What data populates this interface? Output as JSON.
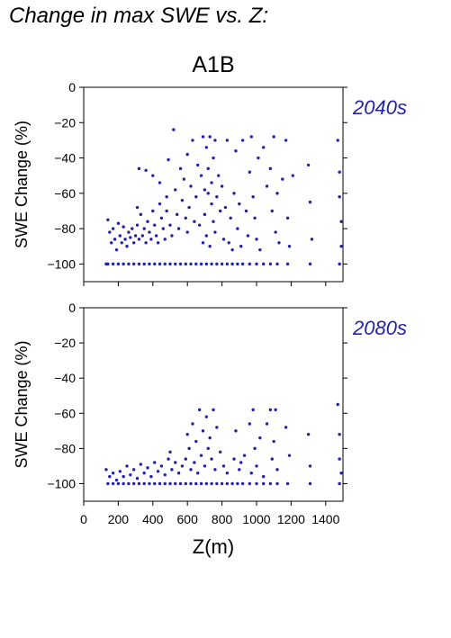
{
  "title": "Change in max SWE vs. Z:",
  "chart_data": {
    "type": "scatter",
    "scenario": "A1B",
    "color": "#2222aa",
    "xlabel": "Z(m)",
    "x_ticks": [
      0,
      200,
      400,
      600,
      800,
      1000,
      1200,
      1400
    ],
    "xlim": [
      0,
      1500
    ],
    "panels": [
      {
        "period": "2040s",
        "ylabel": "SWE Change (%)",
        "ylim": [
          -110,
          0
        ],
        "y_ticks": [
          0,
          -20,
          -40,
          -60,
          -80,
          -100
        ],
        "points": [
          [
            130,
            -100
          ],
          [
            140,
            -75
          ],
          [
            150,
            -82
          ],
          [
            160,
            -88
          ],
          [
            170,
            -80
          ],
          [
            180,
            -86
          ],
          [
            190,
            -92
          ],
          [
            200,
            -77
          ],
          [
            210,
            -84
          ],
          [
            220,
            -88
          ],
          [
            230,
            -79
          ],
          [
            240,
            -86
          ],
          [
            250,
            -90
          ],
          [
            260,
            -82
          ],
          [
            270,
            -85
          ],
          [
            280,
            -80
          ],
          [
            290,
            -88
          ],
          [
            300,
            -84
          ],
          [
            310,
            -68
          ],
          [
            310,
            -78
          ],
          [
            320,
            -86
          ],
          [
            320,
            -46
          ],
          [
            330,
            -72
          ],
          [
            340,
            -84
          ],
          [
            350,
            -80
          ],
          [
            360,
            -88
          ],
          [
            360,
            -47
          ],
          [
            370,
            -76
          ],
          [
            380,
            -82
          ],
          [
            390,
            -86
          ],
          [
            400,
            -70
          ],
          [
            400,
            -50
          ],
          [
            410,
            -78
          ],
          [
            420,
            -84
          ],
          [
            430,
            -88
          ],
          [
            440,
            -66
          ],
          [
            440,
            -54
          ],
          [
            450,
            -74
          ],
          [
            460,
            -80
          ],
          [
            470,
            -86
          ],
          [
            480,
            -70
          ],
          [
            480,
            -62
          ],
          [
            490,
            -41
          ],
          [
            500,
            -78
          ],
          [
            510,
            -84
          ],
          [
            520,
            -24
          ],
          [
            530,
            -58
          ],
          [
            540,
            -72
          ],
          [
            550,
            -80
          ],
          [
            560,
            -46
          ],
          [
            570,
            -64
          ],
          [
            580,
            -52
          ],
          [
            590,
            -74
          ],
          [
            600,
            -82
          ],
          [
            600,
            -38
          ],
          [
            610,
            -68
          ],
          [
            620,
            -56
          ],
          [
            630,
            -30
          ],
          [
            640,
            -76
          ],
          [
            650,
            -62
          ],
          [
            660,
            -44
          ],
          [
            670,
            -78
          ],
          [
            680,
            -50
          ],
          [
            690,
            -28
          ],
          [
            690,
            -88
          ],
          [
            700,
            -72
          ],
          [
            700,
            -58
          ],
          [
            710,
            -34
          ],
          [
            710,
            -84
          ],
          [
            720,
            -60
          ],
          [
            720,
            -46
          ],
          [
            730,
            -28
          ],
          [
            730,
            -90
          ],
          [
            740,
            -66
          ],
          [
            740,
            -54
          ],
          [
            750,
            -76
          ],
          [
            750,
            -40
          ],
          [
            760,
            -30
          ],
          [
            760,
            -82
          ],
          [
            770,
            -62
          ],
          [
            780,
            -50
          ],
          [
            790,
            -70
          ],
          [
            800,
            -56
          ],
          [
            810,
            -86
          ],
          [
            820,
            -68
          ],
          [
            830,
            -30
          ],
          [
            840,
            -88
          ],
          [
            850,
            -74
          ],
          [
            860,
            -92
          ],
          [
            870,
            -60
          ],
          [
            880,
            -36
          ],
          [
            890,
            -80
          ],
          [
            900,
            -66
          ],
          [
            910,
            -90
          ],
          [
            920,
            -30
          ],
          [
            940,
            -70
          ],
          [
            950,
            -84
          ],
          [
            960,
            -48
          ],
          [
            970,
            -28
          ],
          [
            980,
            -62
          ],
          [
            990,
            -74
          ],
          [
            1000,
            -86
          ],
          [
            1010,
            -40
          ],
          [
            1020,
            -92
          ],
          [
            1040,
            -34
          ],
          [
            1060,
            -56
          ],
          [
            1080,
            -46
          ],
          [
            1090,
            -70
          ],
          [
            1100,
            -28
          ],
          [
            1110,
            -82
          ],
          [
            1120,
            -60
          ],
          [
            1130,
            -88
          ],
          [
            1150,
            -52
          ],
          [
            1170,
            -30
          ],
          [
            1180,
            -74
          ],
          [
            1190,
            -90
          ],
          [
            1210,
            -50
          ],
          [
            1300,
            -44
          ],
          [
            1310,
            -65
          ],
          [
            1320,
            -86
          ],
          [
            1470,
            -30
          ],
          [
            1480,
            -48
          ],
          [
            1480,
            -62
          ],
          [
            1490,
            -76
          ],
          [
            1490,
            -90
          ],
          [
            140,
            -100
          ],
          [
            170,
            -100
          ],
          [
            200,
            -100
          ],
          [
            230,
            -100
          ],
          [
            260,
            -100
          ],
          [
            290,
            -100
          ],
          [
            320,
            -100
          ],
          [
            350,
            -100
          ],
          [
            380,
            -100
          ],
          [
            410,
            -100
          ],
          [
            440,
            -100
          ],
          [
            470,
            -100
          ],
          [
            500,
            -100
          ],
          [
            530,
            -100
          ],
          [
            560,
            -100
          ],
          [
            590,
            -100
          ],
          [
            620,
            -100
          ],
          [
            650,
            -100
          ],
          [
            680,
            -100
          ],
          [
            710,
            -100
          ],
          [
            740,
            -100
          ],
          [
            770,
            -100
          ],
          [
            800,
            -100
          ],
          [
            830,
            -100
          ],
          [
            860,
            -100
          ],
          [
            890,
            -100
          ],
          [
            920,
            -100
          ],
          [
            960,
            -100
          ],
          [
            1000,
            -100
          ],
          [
            1040,
            -100
          ],
          [
            1080,
            -100
          ],
          [
            1120,
            -100
          ],
          [
            1180,
            -100
          ],
          [
            1310,
            -100
          ],
          [
            1480,
            -100
          ]
        ]
      },
      {
        "period": "2080s",
        "ylabel": "SWE Change (%)",
        "ylim": [
          -110,
          0
        ],
        "y_ticks": [
          0,
          -20,
          -40,
          -60,
          -80,
          -100
        ],
        "points": [
          [
            130,
            -92
          ],
          [
            150,
            -96
          ],
          [
            170,
            -94
          ],
          [
            190,
            -98
          ],
          [
            210,
            -93
          ],
          [
            230,
            -96
          ],
          [
            250,
            -90
          ],
          [
            270,
            -95
          ],
          [
            290,
            -92
          ],
          [
            310,
            -97
          ],
          [
            330,
            -89
          ],
          [
            350,
            -94
          ],
          [
            370,
            -91
          ],
          [
            390,
            -96
          ],
          [
            410,
            -88
          ],
          [
            430,
            -93
          ],
          [
            450,
            -90
          ],
          [
            470,
            -95
          ],
          [
            490,
            -86
          ],
          [
            500,
            -82
          ],
          [
            510,
            -92
          ],
          [
            530,
            -88
          ],
          [
            550,
            -94
          ],
          [
            570,
            -90
          ],
          [
            590,
            -86
          ],
          [
            600,
            -72
          ],
          [
            610,
            -80
          ],
          [
            620,
            -92
          ],
          [
            630,
            -66
          ],
          [
            640,
            -88
          ],
          [
            650,
            -76
          ],
          [
            660,
            -94
          ],
          [
            670,
            -58
          ],
          [
            680,
            -84
          ],
          [
            690,
            -70
          ],
          [
            700,
            -90
          ],
          [
            710,
            -62
          ],
          [
            720,
            -80
          ],
          [
            730,
            -74
          ],
          [
            740,
            -86
          ],
          [
            750,
            -58
          ],
          [
            760,
            -92
          ],
          [
            770,
            -68
          ],
          [
            790,
            -82
          ],
          [
            810,
            -90
          ],
          [
            830,
            -94
          ],
          [
            870,
            -86
          ],
          [
            880,
            -70
          ],
          [
            900,
            -92
          ],
          [
            910,
            -88
          ],
          [
            930,
            -84
          ],
          [
            960,
            -66
          ],
          [
            970,
            -94
          ],
          [
            980,
            -58
          ],
          [
            990,
            -80
          ],
          [
            1000,
            -90
          ],
          [
            1020,
            -74
          ],
          [
            1040,
            -96
          ],
          [
            1060,
            -66
          ],
          [
            1080,
            -58
          ],
          [
            1090,
            -86
          ],
          [
            1100,
            -76
          ],
          [
            1110,
            -58
          ],
          [
            1120,
            -92
          ],
          [
            1170,
            -68
          ],
          [
            1190,
            -84
          ],
          [
            1300,
            -72
          ],
          [
            1310,
            -90
          ],
          [
            1470,
            -55
          ],
          [
            1480,
            -72
          ],
          [
            1480,
            -86
          ],
          [
            1490,
            -94
          ],
          [
            140,
            -100
          ],
          [
            170,
            -100
          ],
          [
            200,
            -100
          ],
          [
            230,
            -100
          ],
          [
            260,
            -100
          ],
          [
            290,
            -100
          ],
          [
            320,
            -100
          ],
          [
            350,
            -100
          ],
          [
            380,
            -100
          ],
          [
            410,
            -100
          ],
          [
            440,
            -100
          ],
          [
            470,
            -100
          ],
          [
            500,
            -100
          ],
          [
            530,
            -100
          ],
          [
            560,
            -100
          ],
          [
            590,
            -100
          ],
          [
            620,
            -100
          ],
          [
            650,
            -100
          ],
          [
            680,
            -100
          ],
          [
            710,
            -100
          ],
          [
            740,
            -100
          ],
          [
            770,
            -100
          ],
          [
            800,
            -100
          ],
          [
            830,
            -100
          ],
          [
            860,
            -100
          ],
          [
            890,
            -100
          ],
          [
            920,
            -100
          ],
          [
            960,
            -100
          ],
          [
            1000,
            -100
          ],
          [
            1040,
            -100
          ],
          [
            1080,
            -100
          ],
          [
            1120,
            -100
          ],
          [
            1180,
            -100
          ],
          [
            1310,
            -100
          ],
          [
            1480,
            -100
          ]
        ]
      }
    ]
  }
}
